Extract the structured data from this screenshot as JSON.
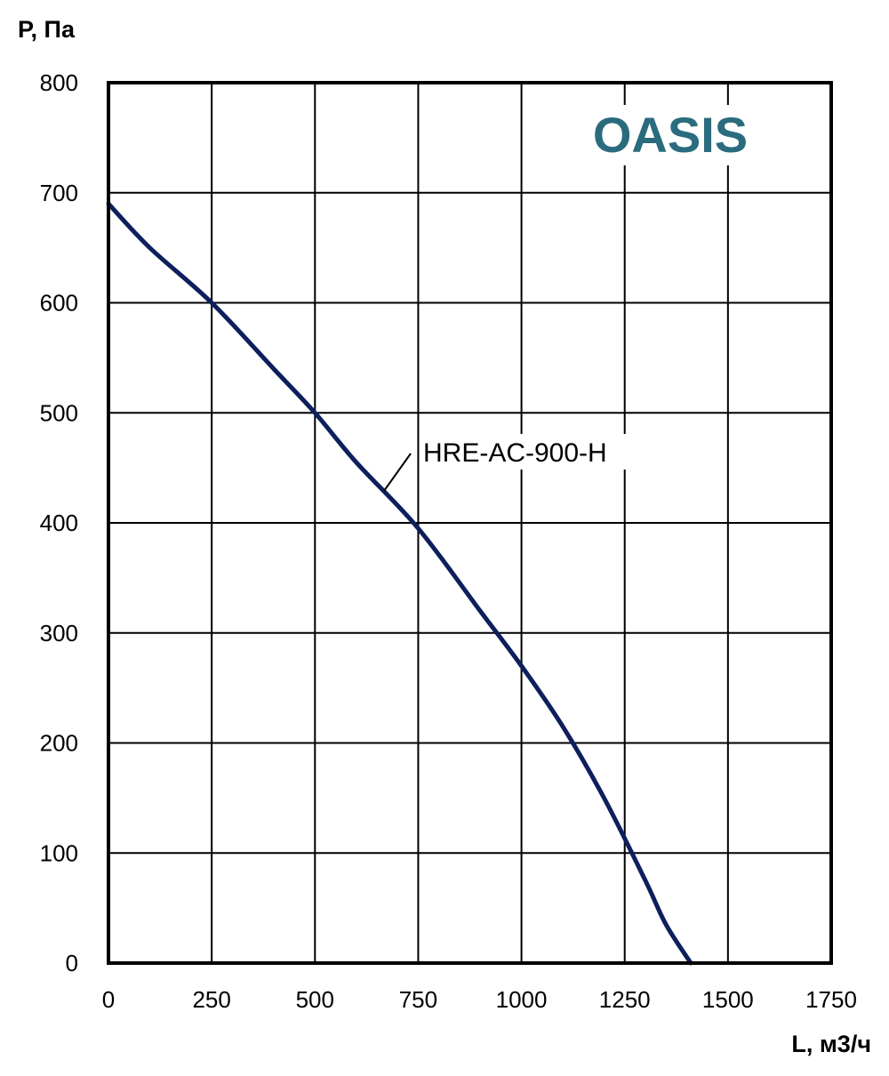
{
  "logo": {
    "text": "OASIS",
    "color": "#2b6b7e"
  },
  "colors": {
    "curve": "#0d1f5c",
    "grid": "#000000",
    "frame": "#000000"
  },
  "chart_data": {
    "type": "line",
    "title": "",
    "xlabel": "L, м3/ч",
    "ylabel": "P, Па",
    "xlim": [
      0,
      1750
    ],
    "ylim": [
      0,
      800
    ],
    "x_ticks": [
      0,
      250,
      500,
      750,
      1000,
      1250,
      1500,
      1750
    ],
    "y_ticks": [
      0,
      100,
      200,
      300,
      400,
      500,
      600,
      700,
      800
    ],
    "grid": true,
    "series": [
      {
        "name": "HRE-AC-900-H",
        "points": [
          [
            0,
            690
          ],
          [
            100,
            650
          ],
          [
            250,
            600
          ],
          [
            400,
            540
          ],
          [
            500,
            500
          ],
          [
            600,
            455
          ],
          [
            750,
            395
          ],
          [
            900,
            320
          ],
          [
            1000,
            270
          ],
          [
            1100,
            215
          ],
          [
            1200,
            150
          ],
          [
            1300,
            75
          ],
          [
            1350,
            35
          ],
          [
            1410,
            0
          ]
        ]
      }
    ]
  }
}
